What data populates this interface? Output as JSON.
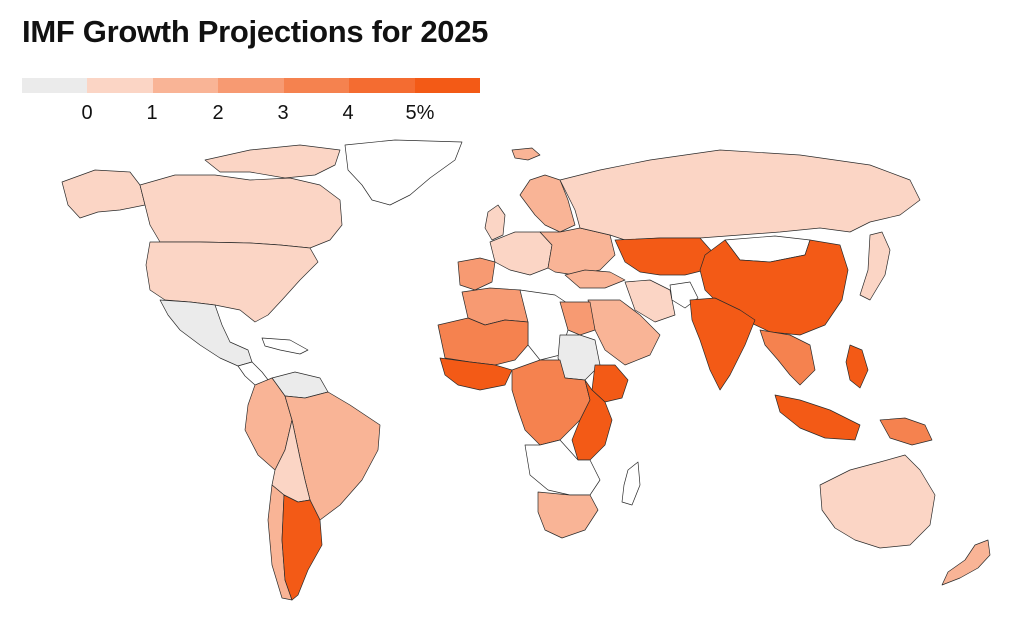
{
  "title": "IMF Growth Projections for 2025",
  "legend": {
    "swatch_colors": [
      "#ebebeb",
      "#fbd5c5",
      "#f9b496",
      "#f79a72",
      "#f5824f",
      "#f46c31",
      "#f35a16"
    ],
    "tick_labels": [
      "0",
      "1",
      "2",
      "3",
      "4",
      "5%"
    ]
  },
  "map": {
    "regions": [
      {
        "name": "greenland",
        "color": "#ffffff"
      },
      {
        "name": "canada",
        "color": "#fbd5c5"
      },
      {
        "name": "alaska",
        "color": "#fbd5c5"
      },
      {
        "name": "arctic-islands",
        "color": "#fbd5c5"
      },
      {
        "name": "usa",
        "color": "#fbd5c5"
      },
      {
        "name": "mexico",
        "color": "#ebebeb"
      },
      {
        "name": "central-america",
        "color": "#ffffff"
      },
      {
        "name": "caribbean",
        "color": "#ffffff"
      },
      {
        "name": "colombia-peru",
        "color": "#f9b496"
      },
      {
        "name": "venezuela",
        "color": "#ebebeb"
      },
      {
        "name": "brazil",
        "color": "#f9b496"
      },
      {
        "name": "bolivia-paraguay",
        "color": "#fbd5c5"
      },
      {
        "name": "argentina",
        "color": "#f35a16"
      },
      {
        "name": "chile",
        "color": "#f9b496"
      },
      {
        "name": "iceland",
        "color": "#f9b496"
      },
      {
        "name": "uk-ireland",
        "color": "#fbd5c5"
      },
      {
        "name": "scandinavia",
        "color": "#f9b496"
      },
      {
        "name": "western-europe",
        "color": "#fbd5c5"
      },
      {
        "name": "eastern-europe",
        "color": "#f9b496"
      },
      {
        "name": "iberia",
        "color": "#f79a72"
      },
      {
        "name": "russia",
        "color": "#fbd5c5"
      },
      {
        "name": "turkey",
        "color": "#f9b496"
      },
      {
        "name": "north-africa",
        "color": "#f79a72"
      },
      {
        "name": "sahel-west",
        "color": "#f5824f"
      },
      {
        "name": "west-africa-coast",
        "color": "#f35a16"
      },
      {
        "name": "libya-chad",
        "color": "#ffffff"
      },
      {
        "name": "egypt",
        "color": "#f79a72"
      },
      {
        "name": "sudan",
        "color": "#ebebeb"
      },
      {
        "name": "ethiopia",
        "color": "#f35a16"
      },
      {
        "name": "central-africa",
        "color": "#f5824f"
      },
      {
        "name": "east-africa",
        "color": "#f35a16"
      },
      {
        "name": "southern-africa",
        "color": "#ffffff"
      },
      {
        "name": "south-africa",
        "color": "#f9b496"
      },
      {
        "name": "madagascar",
        "color": "#ffffff"
      },
      {
        "name": "arabia",
        "color": "#f9b496"
      },
      {
        "name": "iran",
        "color": "#fbd5c5"
      },
      {
        "name": "afghanistan",
        "color": "#ffffff"
      },
      {
        "name": "central-asia",
        "color": "#f35a16"
      },
      {
        "name": "india",
        "color": "#f35a16"
      },
      {
        "name": "mongolia",
        "color": "#ffffff"
      },
      {
        "name": "china",
        "color": "#f35a16"
      },
      {
        "name": "southeast-asia",
        "color": "#f5824f"
      },
      {
        "name": "japan",
        "color": "#fbd5c5"
      },
      {
        "name": "indonesia",
        "color": "#f35a16"
      },
      {
        "name": "philippines",
        "color": "#f35a16"
      },
      {
        "name": "papua-new-guinea",
        "color": "#f5824f"
      },
      {
        "name": "australia",
        "color": "#fbd5c5"
      },
      {
        "name": "new-zealand",
        "color": "#f9b496"
      }
    ]
  }
}
